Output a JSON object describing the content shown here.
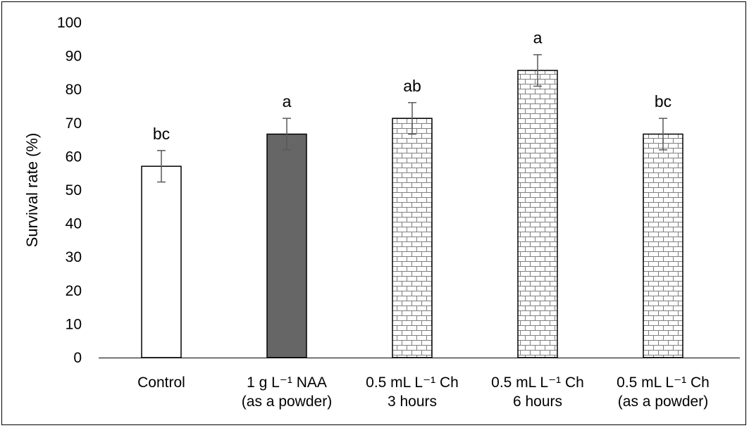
{
  "chart_data": {
    "type": "bar",
    "title": "",
    "xlabel": "",
    "ylabel": "Survival rate (%)",
    "ylim": [
      0,
      100
    ],
    "yticks": [
      "0",
      "10",
      "20",
      "30",
      "40",
      "50",
      "60",
      "70",
      "80",
      "90",
      "100"
    ],
    "grid": false,
    "categories": [
      [
        "Control"
      ],
      [
        "1 g L⁻¹ NAA",
        "(as a powder)"
      ],
      [
        "0.5 mL L⁻¹ Ch",
        "3 hours"
      ],
      [
        "0.5 mL L⁻¹ Ch",
        "6 hours"
      ],
      [
        "0.5 mL L⁻¹ Ch",
        "(as a powder)"
      ]
    ],
    "values": [
      57.1,
      66.7,
      71.4,
      85.7,
      66.7
    ],
    "error": [
      4.7,
      4.7,
      4.7,
      4.7,
      4.7
    ],
    "significance_labels": [
      "bc",
      "a",
      "ab",
      "a",
      "bc"
    ],
    "fills": [
      "white",
      "dark",
      "brick",
      "brick",
      "brick"
    ],
    "colors": {
      "dark_fill": "#666666",
      "bar_edge": "#000000",
      "error_bar": "#595959",
      "brick_line": "#808080"
    }
  }
}
